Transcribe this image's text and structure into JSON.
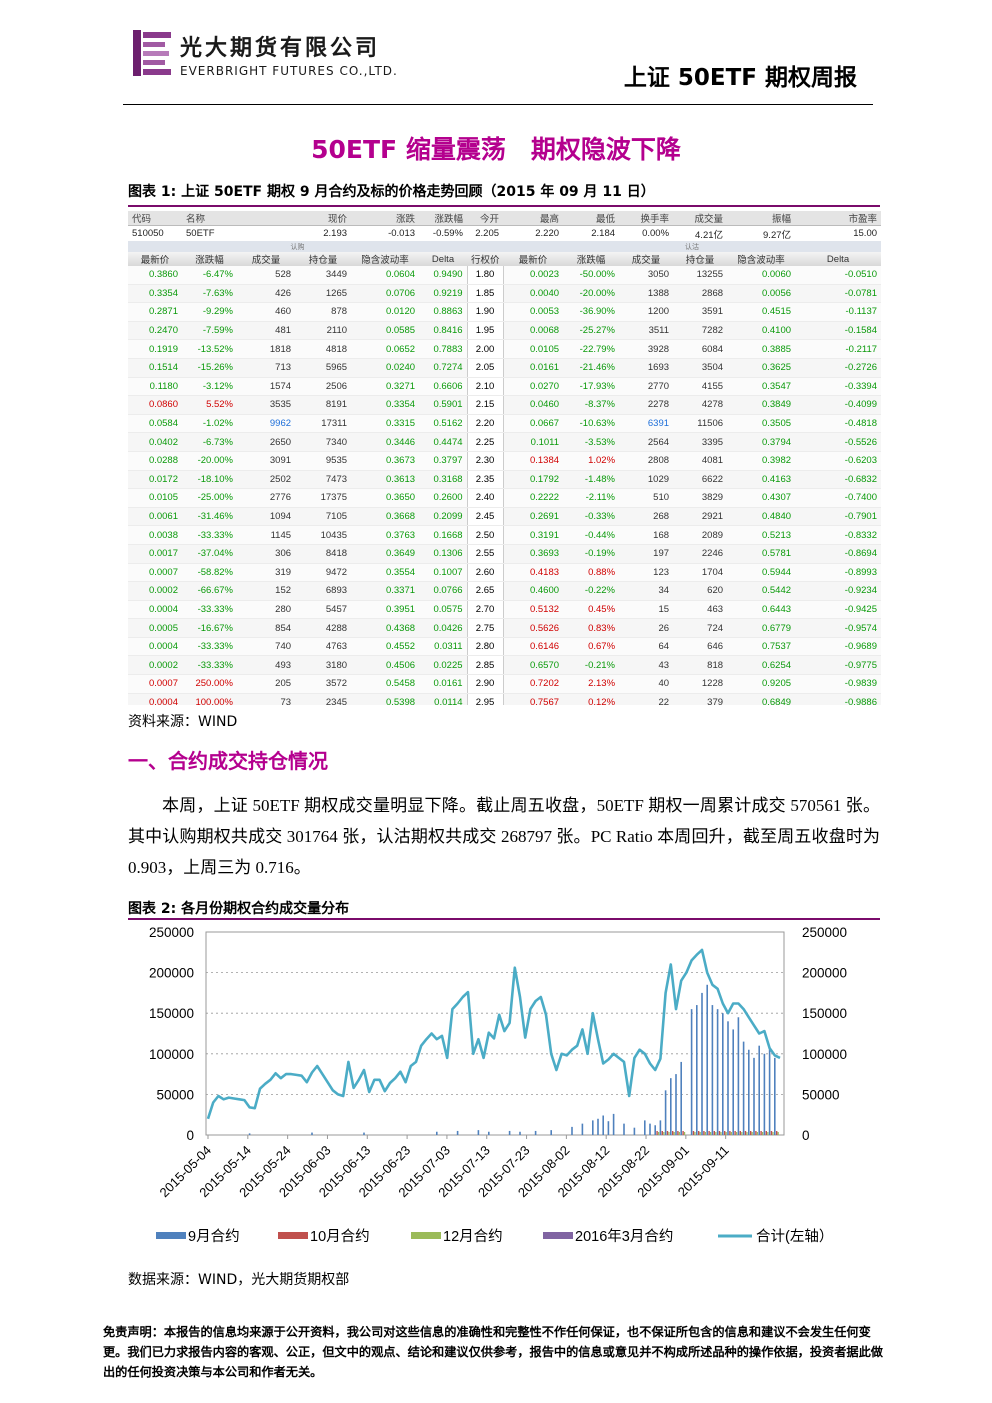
{
  "header": {
    "company_cn": "光大期货有限公司",
    "company_en": "EVERBRIGHT FUTURES CO.,LTD.",
    "report_name": "上证 50ETF 期权周报"
  },
  "title": "50ETF 缩量震荡　期权隐波下降",
  "figure1": {
    "caption": "图表 1:  上证 50ETF 期权 9 月合约及标的价格走势回顾（2015 年 09 月 11 日）",
    "source": "资料来源：WIND",
    "underlying_headers": [
      "代码",
      "名称",
      "现价",
      "涨跌",
      "涨跌幅",
      "今开",
      "最高",
      "最低",
      "换手率",
      "成交量",
      "振幅",
      "市盈率"
    ],
    "underlying_values": [
      "510050",
      "50ETF",
      "2.193",
      "-0.013",
      "-0.59%",
      "2.205",
      "2.220",
      "2.184",
      "0.00%",
      "4.21亿",
      "9.27亿",
      "15.00"
    ],
    "call_label": "认购",
    "put_label": "认沽",
    "col_headers": [
      "最新价",
      "涨跌幅",
      "成交量",
      "持仓量",
      "隐含波动率",
      "Delta",
      "行权价",
      "最新价",
      "涨跌幅",
      "成交量",
      "持仓量",
      "隐含波动率",
      "Delta"
    ],
    "rows": [
      [
        "0.3860",
        "-6.47%",
        "528",
        "3449",
        "0.0604",
        "0.9490",
        "1.80",
        "0.0023",
        "-50.00%",
        "3050",
        "13255",
        "0.0060",
        "-0.0510"
      ],
      [
        "0.3354",
        "-7.63%",
        "426",
        "1265",
        "0.0706",
        "0.9219",
        "1.85",
        "0.0040",
        "-20.00%",
        "1388",
        "2868",
        "0.0056",
        "-0.0781"
      ],
      [
        "0.2871",
        "-9.29%",
        "460",
        "878",
        "0.0120",
        "0.8863",
        "1.90",
        "0.0053",
        "-36.90%",
        "1200",
        "3591",
        "0.4515",
        "-0.1137"
      ],
      [
        "0.2470",
        "-7.59%",
        "481",
        "2110",
        "0.0585",
        "0.8416",
        "1.95",
        "0.0068",
        "-25.27%",
        "3511",
        "7282",
        "0.4100",
        "-0.1584"
      ],
      [
        "0.1919",
        "-13.52%",
        "1818",
        "4818",
        "0.0652",
        "0.7883",
        "2.00",
        "0.0105",
        "-22.79%",
        "3928",
        "6084",
        "0.3885",
        "-0.2117"
      ],
      [
        "0.1514",
        "-15.26%",
        "713",
        "5965",
        "0.0240",
        "0.7274",
        "2.05",
        "0.0161",
        "-21.46%",
        "1693",
        "3504",
        "0.3625",
        "-0.2726"
      ],
      [
        "0.1180",
        "-3.12%",
        "1574",
        "2506",
        "0.3271",
        "0.6606",
        "2.10",
        "0.0270",
        "-17.93%",
        "2770",
        "4155",
        "0.3547",
        "-0.3394"
      ],
      [
        "0.0860",
        "5.52%",
        "3535",
        "8191",
        "0.3354",
        "0.5901",
        "2.15",
        "0.0460",
        "-8.37%",
        "2278",
        "4278",
        "0.3849",
        "-0.4099"
      ],
      [
        "0.0584",
        "-1.02%",
        "9962",
        "17311",
        "0.3315",
        "0.5162",
        "2.20",
        "0.0667",
        "-10.63%",
        "6391",
        "11506",
        "0.3505",
        "-0.4818"
      ],
      [
        "0.0402",
        "-6.73%",
        "2650",
        "7340",
        "0.3446",
        "0.4474",
        "2.25",
        "0.1011",
        "-3.53%",
        "2564",
        "3395",
        "0.3794",
        "-0.5526"
      ],
      [
        "0.0288",
        "-20.00%",
        "3091",
        "9535",
        "0.3673",
        "0.3797",
        "2.30",
        "0.1384",
        "1.02%",
        "2808",
        "4081",
        "0.3982",
        "-0.6203"
      ],
      [
        "0.0172",
        "-18.10%",
        "2502",
        "7473",
        "0.3613",
        "0.3168",
        "2.35",
        "0.1792",
        "-1.48%",
        "1029",
        "6622",
        "0.4163",
        "-0.6832"
      ],
      [
        "0.0105",
        "-25.00%",
        "2776",
        "17375",
        "0.3650",
        "0.2600",
        "2.40",
        "0.2222",
        "-2.11%",
        "510",
        "3829",
        "0.4307",
        "-0.7400"
      ],
      [
        "0.0061",
        "-31.46%",
        "1094",
        "7105",
        "0.3668",
        "0.2099",
        "2.45",
        "0.2691",
        "-0.33%",
        "268",
        "2921",
        "0.4840",
        "-0.7901"
      ],
      [
        "0.0038",
        "-33.33%",
        "1145",
        "10435",
        "0.3763",
        "0.1668",
        "2.50",
        "0.3191",
        "-0.44%",
        "168",
        "2089",
        "0.5213",
        "-0.8332"
      ],
      [
        "0.0017",
        "-37.04%",
        "306",
        "8418",
        "0.3649",
        "0.1306",
        "2.55",
        "0.3693",
        "-0.19%",
        "197",
        "2246",
        "0.5781",
        "-0.8694"
      ],
      [
        "0.0007",
        "-58.82%",
        "319",
        "9472",
        "0.3554",
        "0.1007",
        "2.60",
        "0.4183",
        "0.88%",
        "123",
        "1704",
        "0.5944",
        "-0.8993"
      ],
      [
        "0.0002",
        "-66.67%",
        "152",
        "6893",
        "0.3371",
        "0.0766",
        "2.65",
        "0.4600",
        "-0.22%",
        "34",
        "620",
        "0.5442",
        "-0.9234"
      ],
      [
        "0.0004",
        "-33.33%",
        "280",
        "5457",
        "0.3951",
        "0.0575",
        "2.70",
        "0.5132",
        "0.45%",
        "15",
        "463",
        "0.6443",
        "-0.9425"
      ],
      [
        "0.0005",
        "-16.67%",
        "854",
        "4288",
        "0.4368",
        "0.0426",
        "2.75",
        "0.5626",
        "0.83%",
        "26",
        "724",
        "0.6779",
        "-0.9574"
      ],
      [
        "0.0004",
        "-33.33%",
        "740",
        "4763",
        "0.4552",
        "0.0311",
        "2.80",
        "0.6146",
        "0.67%",
        "64",
        "646",
        "0.7537",
        "-0.9689"
      ],
      [
        "0.0002",
        "-33.33%",
        "493",
        "3180",
        "0.4506",
        "0.0225",
        "2.85",
        "0.6570",
        "-0.21%",
        "43",
        "818",
        "0.6254",
        "-0.9775"
      ],
      [
        "0.0007",
        "250.00%",
        "205",
        "3572",
        "0.5458",
        "0.0161",
        "2.90",
        "0.7202",
        "2.13%",
        "40",
        "1228",
        "0.9205",
        "-0.9839"
      ],
      [
        "0.0004",
        "100.00%",
        "73",
        "2345",
        "0.5398",
        "0.0114",
        "2.95",
        "0.7567",
        "0.12%",
        "22",
        "379",
        "0.6849",
        "-0.9886"
      ]
    ]
  },
  "section1": {
    "heading": "一、合约成交持仓情况",
    "paragraph": "本周，上证 50ETF 期权成交量明显下降。截止周五收盘，50ETF 期权一周累计成交 570561 张。其中认购期权共成交 301764 张，认沽期权共成交 268797 张。PC Ratio 本周回升，截至周五收盘时为 0.903，上周三为 0.716。"
  },
  "figure2": {
    "caption": "图表 2:  各月份期权合约成交量分布",
    "source": "数据来源：WIND，光大期货期权部"
  },
  "chart_data": {
    "type": "bar",
    "title": "",
    "ylim": [
      0,
      250000
    ],
    "yticks": [
      0,
      50000,
      100000,
      150000,
      200000,
      250000
    ],
    "xtick_labels": [
      "2015-05-04",
      "2015-05-14",
      "2015-05-24",
      "2015-06-03",
      "2015-06-13",
      "2015-06-23",
      "2015-07-03",
      "2015-07-13",
      "2015-07-23",
      "2015-08-02",
      "2015-08-12",
      "2015-08-22",
      "2015-09-01",
      "2015-09-11"
    ],
    "legend_position": "bottom",
    "series": [
      {
        "name": "9月合约",
        "kind": "bar",
        "color": "#4f81bd"
      },
      {
        "name": "10月合约",
        "kind": "bar",
        "color": "#c0504d"
      },
      {
        "name": "12月合约",
        "kind": "bar",
        "color": "#9bbb59"
      },
      {
        "name": "2016年3月合约",
        "kind": "bar",
        "color": "#8064a2"
      },
      {
        "name": "合计(左轴）",
        "kind": "line",
        "color": "#4bacc6"
      }
    ],
    "total_points": [
      [
        0,
        20000
      ],
      [
        1,
        40000
      ],
      [
        2,
        48000
      ],
      [
        3,
        44000
      ],
      [
        4,
        46000
      ],
      [
        5,
        45000
      ],
      [
        6,
        44000
      ],
      [
        7,
        43000
      ],
      [
        8,
        34000
      ],
      [
        9,
        33000
      ],
      [
        10,
        57000
      ],
      [
        11,
        63000
      ],
      [
        12,
        68000
      ],
      [
        13,
        76000
      ],
      [
        14,
        70000
      ],
      [
        15,
        75000
      ],
      [
        16,
        75000
      ],
      [
        17,
        74000
      ],
      [
        18,
        73000
      ],
      [
        19,
        65000
      ],
      [
        20,
        77000
      ],
      [
        21,
        85000
      ],
      [
        22,
        75000
      ],
      [
        23,
        65000
      ],
      [
        24,
        55000
      ],
      [
        25,
        50000
      ],
      [
        26,
        48000
      ],
      [
        27,
        90000
      ],
      [
        28,
        58000
      ],
      [
        29,
        68000
      ],
      [
        30,
        80000
      ],
      [
        31,
        53000
      ],
      [
        32,
        68000
      ],
      [
        33,
        68000
      ],
      [
        34,
        54000
      ],
      [
        35,
        64000
      ],
      [
        36,
        70000
      ],
      [
        37,
        78000
      ],
      [
        38,
        65000
      ],
      [
        39,
        85000
      ],
      [
        40,
        90000
      ],
      [
        41,
        110000
      ],
      [
        42,
        118000
      ],
      [
        43,
        125000
      ],
      [
        44,
        118000
      ],
      [
        45,
        122000
      ],
      [
        46,
        95000
      ],
      [
        47,
        155000
      ],
      [
        48,
        162000
      ],
      [
        49,
        170000
      ],
      [
        50,
        176000
      ],
      [
        51,
        100000
      ],
      [
        52,
        118000
      ],
      [
        53,
        95000
      ],
      [
        54,
        126000
      ],
      [
        55,
        119000
      ],
      [
        56,
        148000
      ],
      [
        57,
        128000
      ],
      [
        58,
        138000
      ],
      [
        59,
        206000
      ],
      [
        60,
        170000
      ],
      [
        61,
        120000
      ],
      [
        62,
        155000
      ],
      [
        63,
        165000
      ],
      [
        64,
        170000
      ],
      [
        65,
        148000
      ],
      [
        66,
        100000
      ],
      [
        67,
        80000
      ],
      [
        68,
        100000
      ],
      [
        69,
        98000
      ],
      [
        70,
        105000
      ],
      [
        71,
        110000
      ],
      [
        72,
        130000
      ],
      [
        73,
        100000
      ],
      [
        74,
        150000
      ],
      [
        75,
        118000
      ],
      [
        76,
        88000
      ],
      [
        77,
        93000
      ],
      [
        78,
        100000
      ],
      [
        79,
        95000
      ],
      [
        80,
        90000
      ],
      [
        81,
        48000
      ],
      [
        82,
        95000
      ],
      [
        83,
        105000
      ],
      [
        84,
        100000
      ],
      [
        85,
        88000
      ],
      [
        86,
        80000
      ],
      [
        87,
        94000
      ],
      [
        88,
        175000
      ],
      [
        89,
        210000
      ],
      [
        90,
        155000
      ],
      [
        91,
        190000
      ],
      [
        92,
        200000
      ],
      [
        93,
        215000
      ],
      [
        94,
        222000
      ],
      [
        95,
        228000
      ],
      [
        96,
        200000
      ],
      [
        97,
        185000
      ],
      [
        98,
        180000
      ],
      [
        99,
        162000
      ],
      [
        100,
        150000
      ],
      [
        101,
        162000
      ],
      [
        102,
        162000
      ],
      [
        103,
        155000
      ],
      [
        104,
        145000
      ],
      [
        105,
        135000
      ],
      [
        106,
        125000
      ],
      [
        107,
        128000
      ],
      [
        108,
        107000
      ],
      [
        109,
        98000
      ],
      [
        110,
        95000
      ]
    ],
    "bar_points": [
      [
        8,
        2000
      ],
      [
        20,
        3000
      ],
      [
        30,
        3000
      ],
      [
        44,
        4000
      ],
      [
        48,
        5000
      ],
      [
        52,
        6000
      ],
      [
        54,
        4000
      ],
      [
        58,
        5000
      ],
      [
        60,
        4000
      ],
      [
        63,
        5000
      ],
      [
        66,
        6000
      ],
      [
        70,
        10000
      ],
      [
        72,
        14000
      ],
      [
        74,
        18000
      ],
      [
        75,
        20000
      ],
      [
        76,
        24000
      ],
      [
        77,
        17000
      ],
      [
        78,
        26000
      ],
      [
        80,
        14000
      ],
      [
        82,
        9000
      ],
      [
        84,
        18000
      ],
      [
        85,
        14000
      ],
      [
        86,
        12000
      ],
      [
        87,
        18000
      ],
      [
        88,
        55000
      ],
      [
        89,
        70000
      ],
      [
        90,
        75000
      ],
      [
        91,
        90000
      ],
      [
        93,
        155000
      ],
      [
        94,
        160000
      ],
      [
        95,
        175000
      ],
      [
        96,
        185000
      ],
      [
        97,
        160000
      ],
      [
        98,
        155000
      ],
      [
        99,
        150000
      ],
      [
        100,
        140000
      ],
      [
        101,
        130000
      ],
      [
        102,
        145000
      ],
      [
        103,
        115000
      ],
      [
        104,
        105000
      ],
      [
        105,
        95000
      ],
      [
        106,
        110000
      ],
      [
        107,
        100000
      ],
      [
        108,
        107000
      ],
      [
        109,
        95000
      ]
    ]
  },
  "disclaimer": "免责声明：本报告的信息均来源于公开资料，我公司对这些信息的准确性和完整性不作任何保证，也不保证所包含的信息和建议不会发生任何变更。我们已力求报告内容的客观、公正，但文中的观点、结论和建议仅供参考，报告中的信息或意见并不构成所述品种的操作依据，投资者据此做出的任何投资决策与本公司和作者无关。"
}
